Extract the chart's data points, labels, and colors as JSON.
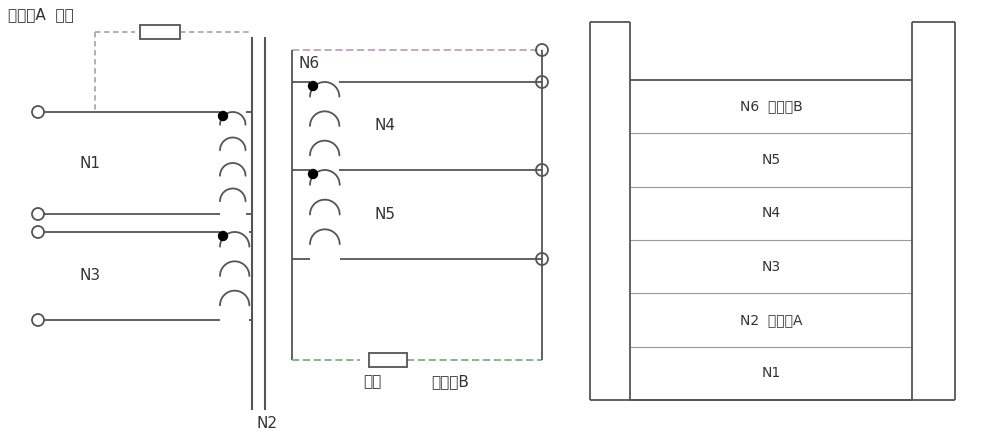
{
  "bg_color": "#ffffff",
  "line_color": "#555555",
  "lw": 1.3,
  "label_top_left": "屏蔽层A  电阵",
  "label_N1": "N1",
  "label_N2": "N2",
  "label_N3": "N3",
  "label_N4": "N4",
  "label_N5": "N5",
  "label_N6": "N6",
  "label_resistor": "电阵",
  "label_shieldB": "屏蔽层B",
  "layer_labels": [
    "N6  屏蔽层B",
    "N5",
    "N4",
    "N3",
    "N2  屏蔽层A",
    "N1"
  ],
  "shield_a_color": "#aaaaaa",
  "shield_b_top_color": "#c0a0c0",
  "shield_b_bot_color": "#80b080",
  "font_size": 11,
  "font_size_small": 10
}
